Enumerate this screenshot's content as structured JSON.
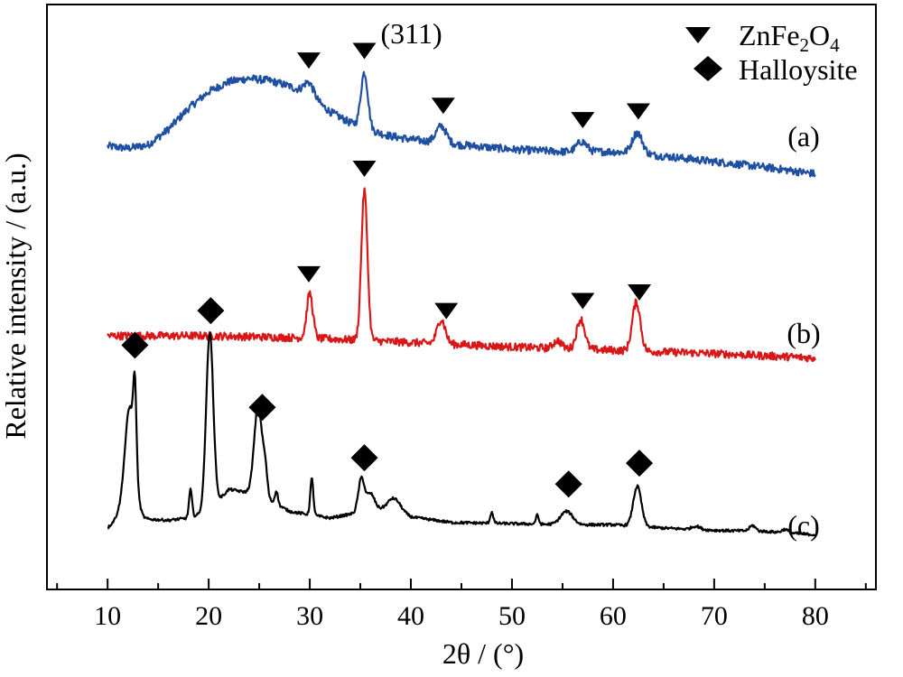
{
  "chart_data": {
    "type": "line",
    "title": "",
    "xlabel": "2θ / (°)",
    "ylabel": "Relative intensity / (a.u.)",
    "xlim": [
      4,
      86
    ],
    "x_ticks": [
      10,
      20,
      30,
      40,
      50,
      60,
      70,
      80
    ],
    "y_ticks": "none (arbitrary units)",
    "grid": false,
    "legend_position": "top-right",
    "legend": [
      {
        "marker": "triangle-down",
        "label_base": "ZnFe",
        "sub1": "2",
        "label_mid": "O",
        "sub2": "4"
      },
      {
        "marker": "diamond",
        "label_base": "Halloysite"
      }
    ],
    "annotation": {
      "text": "(311)",
      "x": 35.4,
      "series": "(a)"
    },
    "series": [
      {
        "name": "(a)",
        "color": "#1f4fa0",
        "baseline_points": [
          [
            10,
            0.5
          ],
          [
            12,
            0.3
          ],
          [
            14,
            0.6
          ],
          [
            16,
            2.0
          ],
          [
            18,
            3.9
          ],
          [
            20,
            5.4
          ],
          [
            22,
            6.3
          ],
          [
            24,
            6.6
          ],
          [
            26,
            6.4
          ],
          [
            28,
            5.9
          ],
          [
            30,
            5.0
          ],
          [
            32,
            3.6
          ],
          [
            34,
            2.6
          ],
          [
            36,
            1.9
          ],
          [
            38,
            1.4
          ],
          [
            40,
            1.1
          ],
          [
            45,
            0.6
          ],
          [
            50,
            0.2
          ],
          [
            55,
            0.0
          ],
          [
            60,
            0.0
          ],
          [
            65,
            -0.4
          ],
          [
            70,
            -0.9
          ],
          [
            75,
            -1.4
          ],
          [
            80,
            -2.0
          ]
        ],
        "peaks": [
          [
            29.9,
            1.2,
            0.5
          ],
          [
            35.4,
            5.0,
            0.35
          ],
          [
            43.0,
            1.5,
            0.5
          ],
          [
            56.9,
            0.9,
            0.5
          ],
          [
            62.4,
            1.9,
            0.5
          ]
        ],
        "noise": 0.35,
        "markers": {
          "shape": "triangle-down",
          "x": [
            29.9,
            35.4,
            43.2,
            57.0,
            62.5
          ]
        }
      },
      {
        "name": "(b)",
        "color": "#d81818",
        "baseline_points": [
          [
            10,
            0.0
          ],
          [
            20,
            0.0
          ],
          [
            30,
            -0.2
          ],
          [
            40,
            -0.6
          ],
          [
            50,
            -1.0
          ],
          [
            60,
            -1.3
          ],
          [
            70,
            -1.6
          ],
          [
            80,
            -2.0
          ]
        ],
        "peaks": [
          [
            30.0,
            4.0,
            0.3
          ],
          [
            35.4,
            13.5,
            0.3
          ],
          [
            43.0,
            2.2,
            0.4
          ],
          [
            56.8,
            2.7,
            0.4
          ],
          [
            62.3,
            4.4,
            0.4
          ],
          [
            54.5,
            0.7,
            0.4
          ]
        ],
        "noise": 0.35,
        "markers": {
          "shape": "triangle-down",
          "x": [
            29.9,
            35.4,
            43.5,
            57.0,
            62.6
          ]
        }
      },
      {
        "name": "(c)",
        "color": "#000000",
        "baseline_points": [
          [
            10,
            0.0
          ],
          [
            11,
            1.0
          ],
          [
            14,
            0.8
          ],
          [
            16,
            0.7
          ],
          [
            18,
            0.9
          ],
          [
            20,
            1.5
          ],
          [
            22,
            3.5
          ],
          [
            25,
            3.0
          ],
          [
            28,
            1.5
          ],
          [
            32,
            0.9
          ],
          [
            36,
            1.6
          ],
          [
            38,
            1.8
          ],
          [
            40,
            1.0
          ],
          [
            44,
            0.5
          ],
          [
            50,
            0.4
          ],
          [
            55,
            0.3
          ],
          [
            60,
            0.3
          ],
          [
            65,
            0.0
          ],
          [
            70,
            -0.2
          ],
          [
            75,
            -0.3
          ],
          [
            80,
            -0.6
          ]
        ],
        "peaks": [
          [
            12.2,
            10.0,
            0.5
          ],
          [
            12.7,
            7.0,
            0.15
          ],
          [
            18.2,
            2.5,
            0.15
          ],
          [
            20.1,
            16.0,
            0.35
          ],
          [
            24.9,
            8.0,
            0.4
          ],
          [
            25.6,
            2.0,
            0.2
          ],
          [
            26.7,
            1.2,
            0.15
          ],
          [
            30.2,
            3.3,
            0.15
          ],
          [
            35.1,
            3.0,
            0.3
          ],
          [
            36.0,
            1.5,
            0.4
          ],
          [
            38.4,
            1.0,
            0.6
          ],
          [
            48.0,
            1.0,
            0.15
          ],
          [
            52.5,
            0.8,
            0.15
          ],
          [
            55.4,
            1.2,
            0.6
          ],
          [
            62.4,
            3.6,
            0.4
          ],
          [
            68.2,
            0.3,
            0.4
          ],
          [
            73.8,
            0.5,
            0.3
          ],
          [
            77.0,
            0.3,
            0.3
          ]
        ],
        "noise": 0.12,
        "markers": {
          "shape": "diamond",
          "x": [
            12.7,
            20.2,
            25.3,
            35.4,
            55.6,
            62.6
          ]
        }
      }
    ]
  }
}
